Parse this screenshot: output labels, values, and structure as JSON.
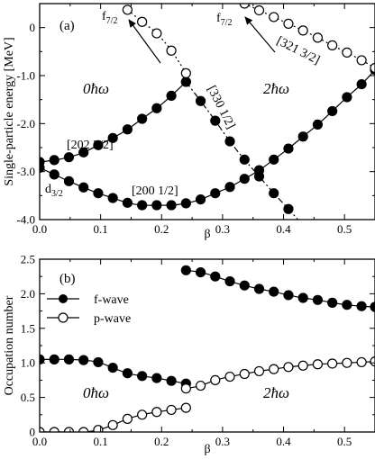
{
  "chart_data": [
    {
      "panel": "(a)",
      "type": "scatter",
      "xlabel": "β",
      "ylabel": "Single-particle energy [MeV]",
      "xlim": [
        0.0,
        0.55
      ],
      "ylim": [
        -4.0,
        0.5
      ],
      "xticks": [
        "0.0",
        "0.1",
        "0.2",
        "0.3",
        "0.4",
        "0.5"
      ],
      "yticks": [
        "0",
        "-1.0",
        "-2.0",
        "-3.0",
        "-4.0"
      ],
      "series": [
        {
          "style": "solid-filled",
          "x": [
            0.0,
            0.024,
            0.048,
            0.072,
            0.096,
            0.12,
            0.144,
            0.168,
            0.192,
            0.216,
            0.24
          ],
          "y": [
            -2.8,
            -2.76,
            -2.7,
            -2.6,
            -2.45,
            -2.3,
            -2.12,
            -1.9,
            -1.68,
            -1.42,
            -1.13
          ]
        },
        {
          "style": "solid-filled",
          "x": [
            0.0,
            0.024,
            0.048,
            0.072,
            0.096,
            0.12,
            0.144,
            0.168,
            0.192,
            0.216,
            0.24,
            0.264,
            0.288,
            0.312,
            0.336,
            0.36,
            0.384,
            0.408,
            0.432,
            0.456,
            0.48,
            0.504,
            0.528,
            0.55
          ],
          "y": [
            -2.92,
            -3.06,
            -3.2,
            -3.33,
            -3.45,
            -3.55,
            -3.65,
            -3.7,
            -3.7,
            -3.7,
            -3.66,
            -3.58,
            -3.45,
            -3.32,
            -3.15,
            -2.97,
            -2.75,
            -2.52,
            -2.27,
            -2.02,
            -1.74,
            -1.45,
            -1.18,
            -0.88
          ]
        },
        {
          "style": "dashdot-filled",
          "x": [
            0.24,
            0.264,
            0.288,
            0.312,
            0.336,
            0.36,
            0.384,
            0.408,
            0.432
          ],
          "y": [
            -1.13,
            -1.53,
            -1.94,
            -2.37,
            -2.75,
            -3.1,
            -3.45,
            -3.78,
            -4.12
          ]
        },
        {
          "style": "dotted-open",
          "x": [
            0.144,
            0.168,
            0.192,
            0.216,
            0.24
          ],
          "y": [
            0.37,
            0.12,
            -0.12,
            -0.48,
            -0.95
          ]
        },
        {
          "style": "dotted-open",
          "x": [
            0.336,
            0.36,
            0.384,
            0.408,
            0.432,
            0.456,
            0.48,
            0.504,
            0.528,
            0.55
          ],
          "y": [
            0.5,
            0.36,
            0.22,
            0.08,
            -0.06,
            -0.21,
            -0.37,
            -0.52,
            -0.68,
            -0.84
          ]
        }
      ],
      "annotations": {
        "panel_label": "(a)",
        "f72_left": "f",
        "f72_left_sub": "7/2",
        "f72_right": "f",
        "f72_right_sub": "7/2",
        "label_321": "[321 3/2]",
        "label_330": "[330 1/2]",
        "label_202": "[202 3/2]",
        "label_200": "[200 1/2]",
        "d32": "d",
        "d32_sub": "3/2",
        "region_left": "0ħω",
        "region_right": "2ħω"
      }
    },
    {
      "panel": "(b)",
      "type": "scatter",
      "xlabel": "β",
      "ylabel": "Occupation number",
      "xlim": [
        0.0,
        0.55
      ],
      "ylim": [
        0.0,
        2.5
      ],
      "xticks": [
        "0.0",
        "0.1",
        "0.2",
        "0.3",
        "0.4",
        "0.5"
      ],
      "yticks": [
        "0",
        "0.5",
        "1.0",
        "1.5",
        "2.0",
        "2.5"
      ],
      "legend": [
        {
          "label": "f-wave",
          "marker": "filled"
        },
        {
          "label": "p-wave",
          "marker": "open"
        }
      ],
      "series": [
        {
          "name": "f-wave",
          "style": "solid-filled",
          "x": [
            0.0,
            0.024,
            0.048,
            0.072,
            0.096,
            0.12,
            0.144,
            0.168,
            0.192,
            0.216,
            0.24
          ],
          "y": [
            1.05,
            1.05,
            1.05,
            1.04,
            1.01,
            0.93,
            0.85,
            0.81,
            0.78,
            0.74,
            0.7
          ]
        },
        {
          "name": "f-wave",
          "style": "solid-filled",
          "x": [
            0.24,
            0.264,
            0.288,
            0.312,
            0.336,
            0.36,
            0.384,
            0.408,
            0.432,
            0.456,
            0.48,
            0.504,
            0.528,
            0.55
          ],
          "y": [
            2.34,
            2.31,
            2.25,
            2.18,
            2.12,
            2.07,
            2.03,
            1.98,
            1.94,
            1.91,
            1.87,
            1.84,
            1.82,
            1.81
          ]
        },
        {
          "name": "p-wave",
          "style": "solid-open",
          "x": [
            0.0,
            0.024,
            0.048,
            0.072,
            0.096,
            0.12,
            0.144,
            0.168,
            0.192,
            0.216,
            0.24
          ],
          "y": [
            0.0,
            0.0,
            0.0,
            0.0,
            0.03,
            0.1,
            0.19,
            0.25,
            0.29,
            0.32,
            0.35
          ]
        },
        {
          "name": "p-wave",
          "style": "solid-open",
          "x": [
            0.24,
            0.264,
            0.288,
            0.312,
            0.336,
            0.36,
            0.384,
            0.408,
            0.432,
            0.456,
            0.48,
            0.504,
            0.528,
            0.55
          ],
          "y": [
            0.63,
            0.67,
            0.75,
            0.8,
            0.84,
            0.88,
            0.91,
            0.94,
            0.96,
            0.98,
            0.99,
            1.0,
            1.01,
            1.02
          ]
        }
      ],
      "annotations": {
        "panel_label": "(b)",
        "region_left": "0ħω",
        "region_right": "2ħω"
      }
    }
  ]
}
